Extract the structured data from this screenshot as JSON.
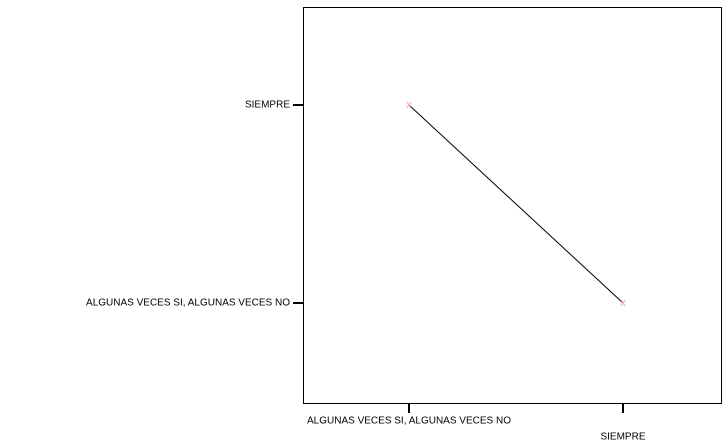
{
  "chart_data": {
    "type": "line",
    "x": [
      "ALGUNAS VECES SI, ALGUNAS VECES NO",
      "SIEMPRE"
    ],
    "ycategories": [
      "ALGUNAS VECES SI, ALGUNAS VECES NO",
      "SIEMPRE"
    ],
    "series": [
      {
        "color": "#000000",
        "marker_color": "#f4a0a0",
        "values": [
          "SIEMPRE",
          "ALGUNAS VECES SI, ALGUNAS VECES NO"
        ]
      }
    ]
  }
}
